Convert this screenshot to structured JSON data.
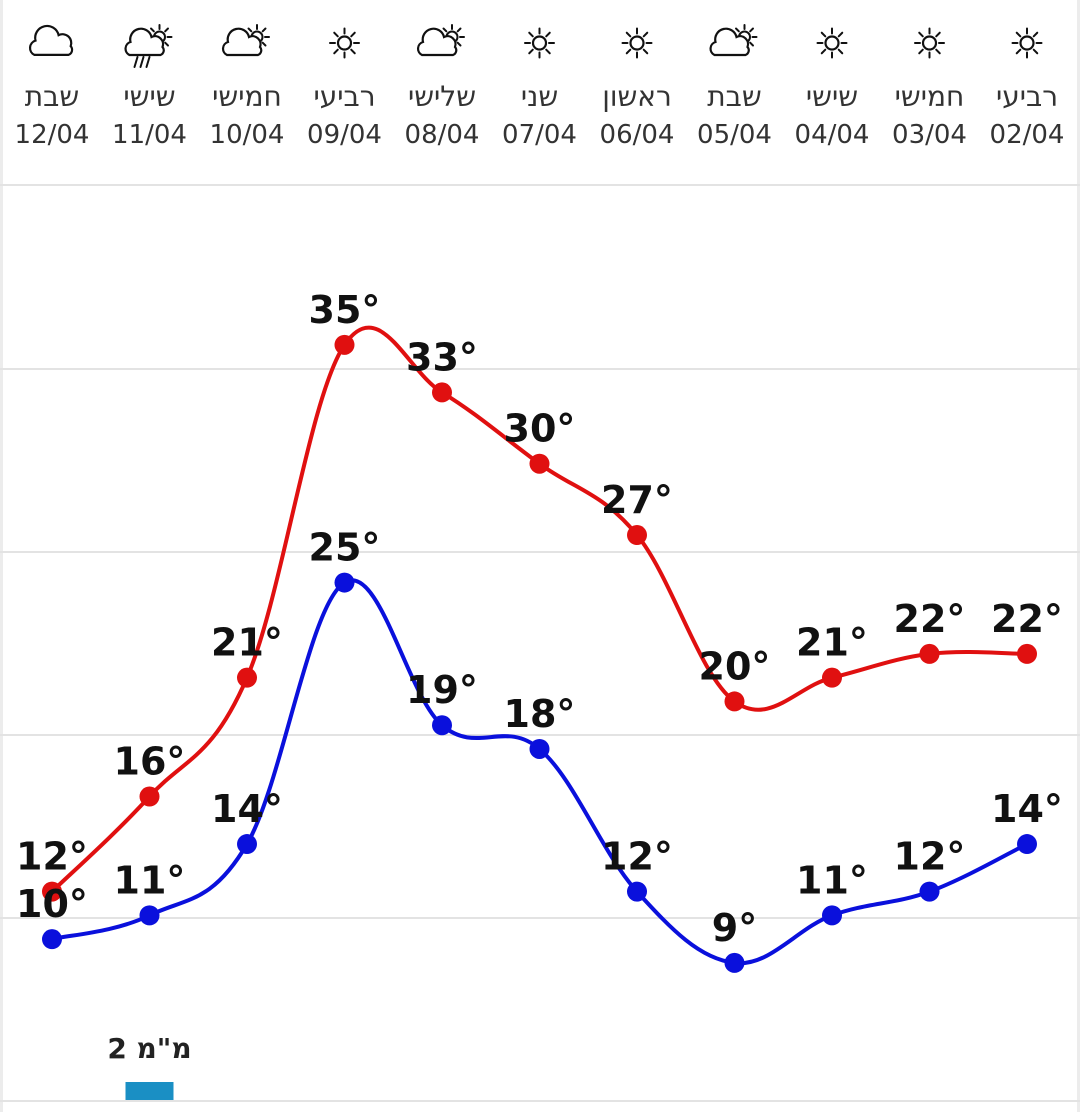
{
  "chart_data": {
    "type": "line",
    "days": [
      {
        "day": "שבת",
        "date": "12/04",
        "icon": "cloud-icon"
      },
      {
        "day": "שישי",
        "date": "11/04",
        "icon": "rain-sun-cloud-icon"
      },
      {
        "day": "חמישי",
        "date": "10/04",
        "icon": "partly-cloudy-icon"
      },
      {
        "day": "רביעי",
        "date": "09/04",
        "icon": "sun-icon"
      },
      {
        "day": "שלישי",
        "date": "08/04",
        "icon": "partly-cloudy-icon"
      },
      {
        "day": "שני",
        "date": "07/04",
        "icon": "sun-icon"
      },
      {
        "day": "ראשון",
        "date": "06/04",
        "icon": "sun-icon"
      },
      {
        "day": "שבת",
        "date": "05/04",
        "icon": "partly-cloudy-icon"
      },
      {
        "day": "שישי",
        "date": "04/04",
        "icon": "sun-icon"
      },
      {
        "day": "חמישי",
        "date": "03/04",
        "icon": "sun-icon"
      },
      {
        "day": "רביעי",
        "date": "02/04",
        "icon": "sun-icon"
      }
    ],
    "series": [
      {
        "key": "max",
        "color": "#e01010",
        "values": [
          12,
          16,
          21,
          35,
          33,
          30,
          27,
          20,
          21,
          22,
          22
        ]
      },
      {
        "key": "min",
        "color": "#0a10dc",
        "values": [
          10,
          11,
          14,
          25,
          19,
          18,
          12,
          9,
          11,
          12,
          14
        ]
      }
    ],
    "degree_symbol": "°",
    "ylim": [
      5,
      40
    ],
    "grid": true,
    "precipitation": [
      {
        "index": 1,
        "label": "2 מ\"מ",
        "color": "#1a8fc4"
      }
    ]
  }
}
